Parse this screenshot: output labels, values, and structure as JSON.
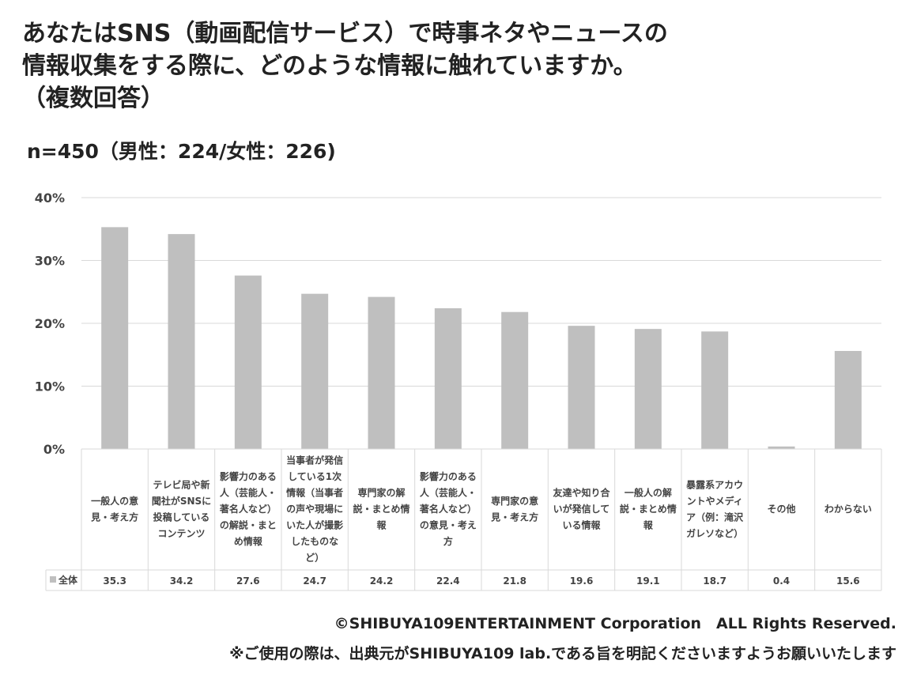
{
  "title_lines": [
    "あなたはSNS（動画配信サービス）で時事ネタやニュースの",
    "情報収集をする際に、どのような情報に触れていますか。",
    "（複数回答）"
  ],
  "sample": "n=450（男性：224/女性：226)",
  "footer": {
    "copyright": "©SHIBUYA109ENTERTAINMENT Corporation　ALL Rights Reserved.",
    "note": "※ご使用の際は、出典元がSHIBUYA109 lab.である旨を明記くださいますようお願いいたします"
  },
  "chart_data": {
    "type": "bar",
    "title": "",
    "xlabel": "",
    "ylabel": "",
    "ylim": [
      0,
      40
    ],
    "y_ticks": [
      "0%",
      "10%",
      "20%",
      "30%",
      "40%"
    ],
    "grid": true,
    "bar_color": "#bfbfbf",
    "categories": [
      [
        "一般人の意",
        "見・考え方"
      ],
      [
        "テレビ局や新",
        "聞社がSNSに",
        "投稿している",
        "コンテンツ"
      ],
      [
        "影響力のある",
        "人（芸能人・",
        "著名人など）",
        "の解説・まと",
        "め情報"
      ],
      [
        "当事者が発信",
        "している1次",
        "情報（当事者",
        "の声や現場に",
        "いた人が撮影",
        "したものな",
        "ど）"
      ],
      [
        "専門家の解",
        "説・まとめ情",
        "報"
      ],
      [
        "影響力のある",
        "人（芸能人・",
        "著名人など）",
        "の意見・考え",
        "方"
      ],
      [
        "専門家の意",
        "見・考え方"
      ],
      [
        "友達や知り合",
        "いが発信して",
        "いる情報"
      ],
      [
        "一般人の解",
        "説・まとめ情",
        "報"
      ],
      [
        "暴露系アカウ",
        "ントやメディ",
        "ア（例：滝沢",
        "ガレソなど）"
      ],
      [
        "その他"
      ],
      [
        "わからない"
      ]
    ],
    "series": [
      {
        "name": "全体",
        "values": [
          35.3,
          34.2,
          27.6,
          24.7,
          24.2,
          22.4,
          21.8,
          19.6,
          19.1,
          18.7,
          0.4,
          15.6
        ],
        "labels": [
          "35.3",
          "34.2",
          "27.6",
          "24.7",
          "24.2",
          "22.4",
          "21.8",
          "19.6",
          "19.1",
          "18.7",
          "0.4",
          "15.6"
        ]
      }
    ]
  }
}
